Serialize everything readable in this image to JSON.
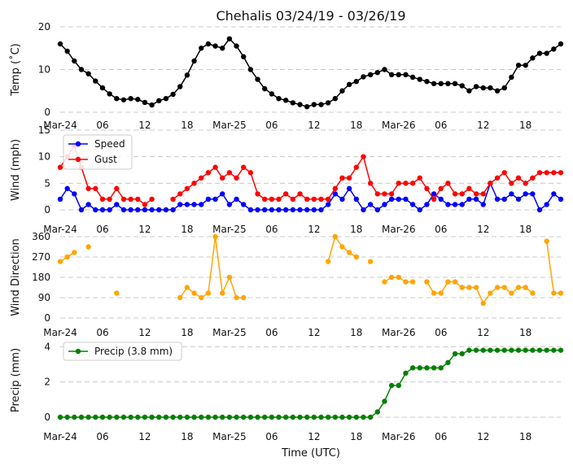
{
  "chart_data": {
    "title": "Chehalis 03/24/19 - 03/26/19",
    "xlabel": "Time (UTC)",
    "x_tick_labels": [
      "Mar-24",
      "06",
      "12",
      "18",
      "Mar-25",
      "06",
      "12",
      "18",
      "Mar-26",
      "06",
      "12",
      "18"
    ],
    "x_tick_hours": [
      0,
      6,
      12,
      18,
      24,
      30,
      36,
      42,
      48,
      54,
      60,
      66
    ],
    "x_range_hours": [
      0,
      71
    ],
    "panels": [
      {
        "id": "temp",
        "type": "line",
        "ylabel": "Temp ($^\\circ$C)",
        "ylabel_display": "Temp (˚C)",
        "ylim": [
          0,
          20
        ],
        "yticks": [
          0,
          10,
          20
        ],
        "series": [
          {
            "name": "Temp",
            "color": "#000000",
            "values": [
              16,
              14.3,
              12,
              10,
              9,
              7.3,
              5.7,
              4.3,
              3.2,
              2.9,
              3.2,
              3,
              2.3,
              1.7,
              2.7,
              3.2,
              4.2,
              6,
              8.7,
              12,
              15,
              16,
              15.5,
              15,
              17.2,
              15.5,
              13,
              10,
              7.7,
              5.5,
              4.3,
              3.2,
              2.8,
              2.2,
              1.8,
              1.3,
              1.8,
              1.8,
              2.2,
              3.2,
              5,
              6.5,
              7.2,
              8.3,
              8.8,
              9.3,
              10,
              8.8,
              8.8,
              8.8,
              8.2,
              7.7,
              7.2,
              6.7,
              6.7,
              6.7,
              6.7,
              6.2,
              5,
              6,
              5.7,
              5.7,
              5,
              5.7,
              8.2,
              11,
              11,
              12.7,
              13.8,
              13.8,
              14.8,
              16
            ]
          }
        ]
      },
      {
        "id": "wind",
        "type": "line",
        "ylabel": "Wind (mph)",
        "ylim": [
          0,
          15
        ],
        "yticks": [
          0,
          5,
          10,
          15
        ],
        "series": [
          {
            "name": "Speed",
            "color": "#0000ff",
            "values": [
              2,
              4,
              3,
              0,
              1,
              0,
              0,
              0,
              1,
              0,
              0,
              0,
              0,
              0,
              0,
              0,
              0,
              1,
              1,
              1,
              1,
              2,
              2,
              3,
              1,
              2,
              1,
              0,
              0,
              0,
              0,
              0,
              0,
              0,
              0,
              0,
              0,
              0,
              1,
              3,
              2,
              4,
              2,
              0,
              1,
              0,
              1,
              2,
              2,
              2,
              1,
              0,
              1,
              3,
              2,
              1,
              1,
              1,
              2,
              2,
              1,
              5,
              2,
              2,
              3,
              2,
              3,
              3,
              0,
              1,
              3,
              2
            ]
          },
          {
            "name": "Gust",
            "color": "#ff0000",
            "values": [
              8,
              10,
              12,
              8,
              4,
              4,
              2,
              2,
              4,
              2,
              2,
              2,
              1,
              2,
              null,
              null,
              2,
              3,
              4,
              5,
              6,
              7,
              8,
              6,
              7,
              6,
              8,
              7,
              3,
              2,
              2,
              2,
              3,
              2,
              3,
              2,
              2,
              2,
              2,
              4,
              6,
              6,
              8,
              10,
              5,
              3,
              3,
              3,
              5,
              5,
              5,
              6,
              4,
              2,
              4,
              5,
              3,
              3,
              4,
              3,
              3,
              5,
              6,
              7,
              5,
              6,
              5,
              6,
              7,
              7,
              7,
              7
            ]
          }
        ],
        "legend": [
          "Speed",
          "Gust"
        ]
      },
      {
        "id": "dir",
        "type": "line",
        "ylabel": "Wind Direction",
        "ylim": [
          0,
          360
        ],
        "yticks": [
          0,
          90,
          180,
          270,
          360
        ],
        "series": [
          {
            "name": "Direction",
            "color": "#ffa500",
            "values": [
              250,
              270,
              290,
              null,
              315,
              null,
              null,
              null,
              110,
              null,
              null,
              null,
              null,
              null,
              null,
              null,
              null,
              90,
              135,
              110,
              90,
              110,
              360,
              110,
              180,
              90,
              90,
              null,
              null,
              null,
              null,
              null,
              null,
              null,
              null,
              null,
              null,
              null,
              250,
              360,
              315,
              290,
              270,
              null,
              250,
              null,
              160,
              180,
              180,
              160,
              160,
              null,
              160,
              110,
              110,
              160,
              160,
              135,
              135,
              135,
              65,
              110,
              135,
              135,
              110,
              135,
              135,
              110,
              null,
              340,
              110,
              110
            ]
          }
        ]
      },
      {
        "id": "precip",
        "type": "line",
        "ylabel": "Precip (mm)",
        "ylim": [
          0,
          4.2
        ],
        "yticks": [
          0,
          2,
          4
        ],
        "series": [
          {
            "name": "Precip (3.8 mm)",
            "color": "#008000",
            "values": [
              0,
              0,
              0,
              0,
              0,
              0,
              0,
              0,
              0,
              0,
              0,
              0,
              0,
              0,
              0,
              0,
              0,
              0,
              0,
              0,
              0,
              0,
              0,
              0,
              0,
              0,
              0,
              0,
              0,
              0,
              0,
              0,
              0,
              0,
              0,
              0,
              0,
              0,
              0,
              0,
              0,
              0,
              0,
              0,
              0,
              0.3,
              0.9,
              1.8,
              1.8,
              2.5,
              2.8,
              2.8,
              2.8,
              2.8,
              2.8,
              3.1,
              3.6,
              3.6,
              3.8,
              3.8,
              3.8,
              3.8,
              3.8,
              3.8,
              3.8,
              3.8,
              3.8,
              3.8,
              3.8,
              3.8,
              3.8,
              3.8
            ]
          }
        ],
        "legend": [
          "Precip (3.8 mm)"
        ]
      }
    ]
  }
}
